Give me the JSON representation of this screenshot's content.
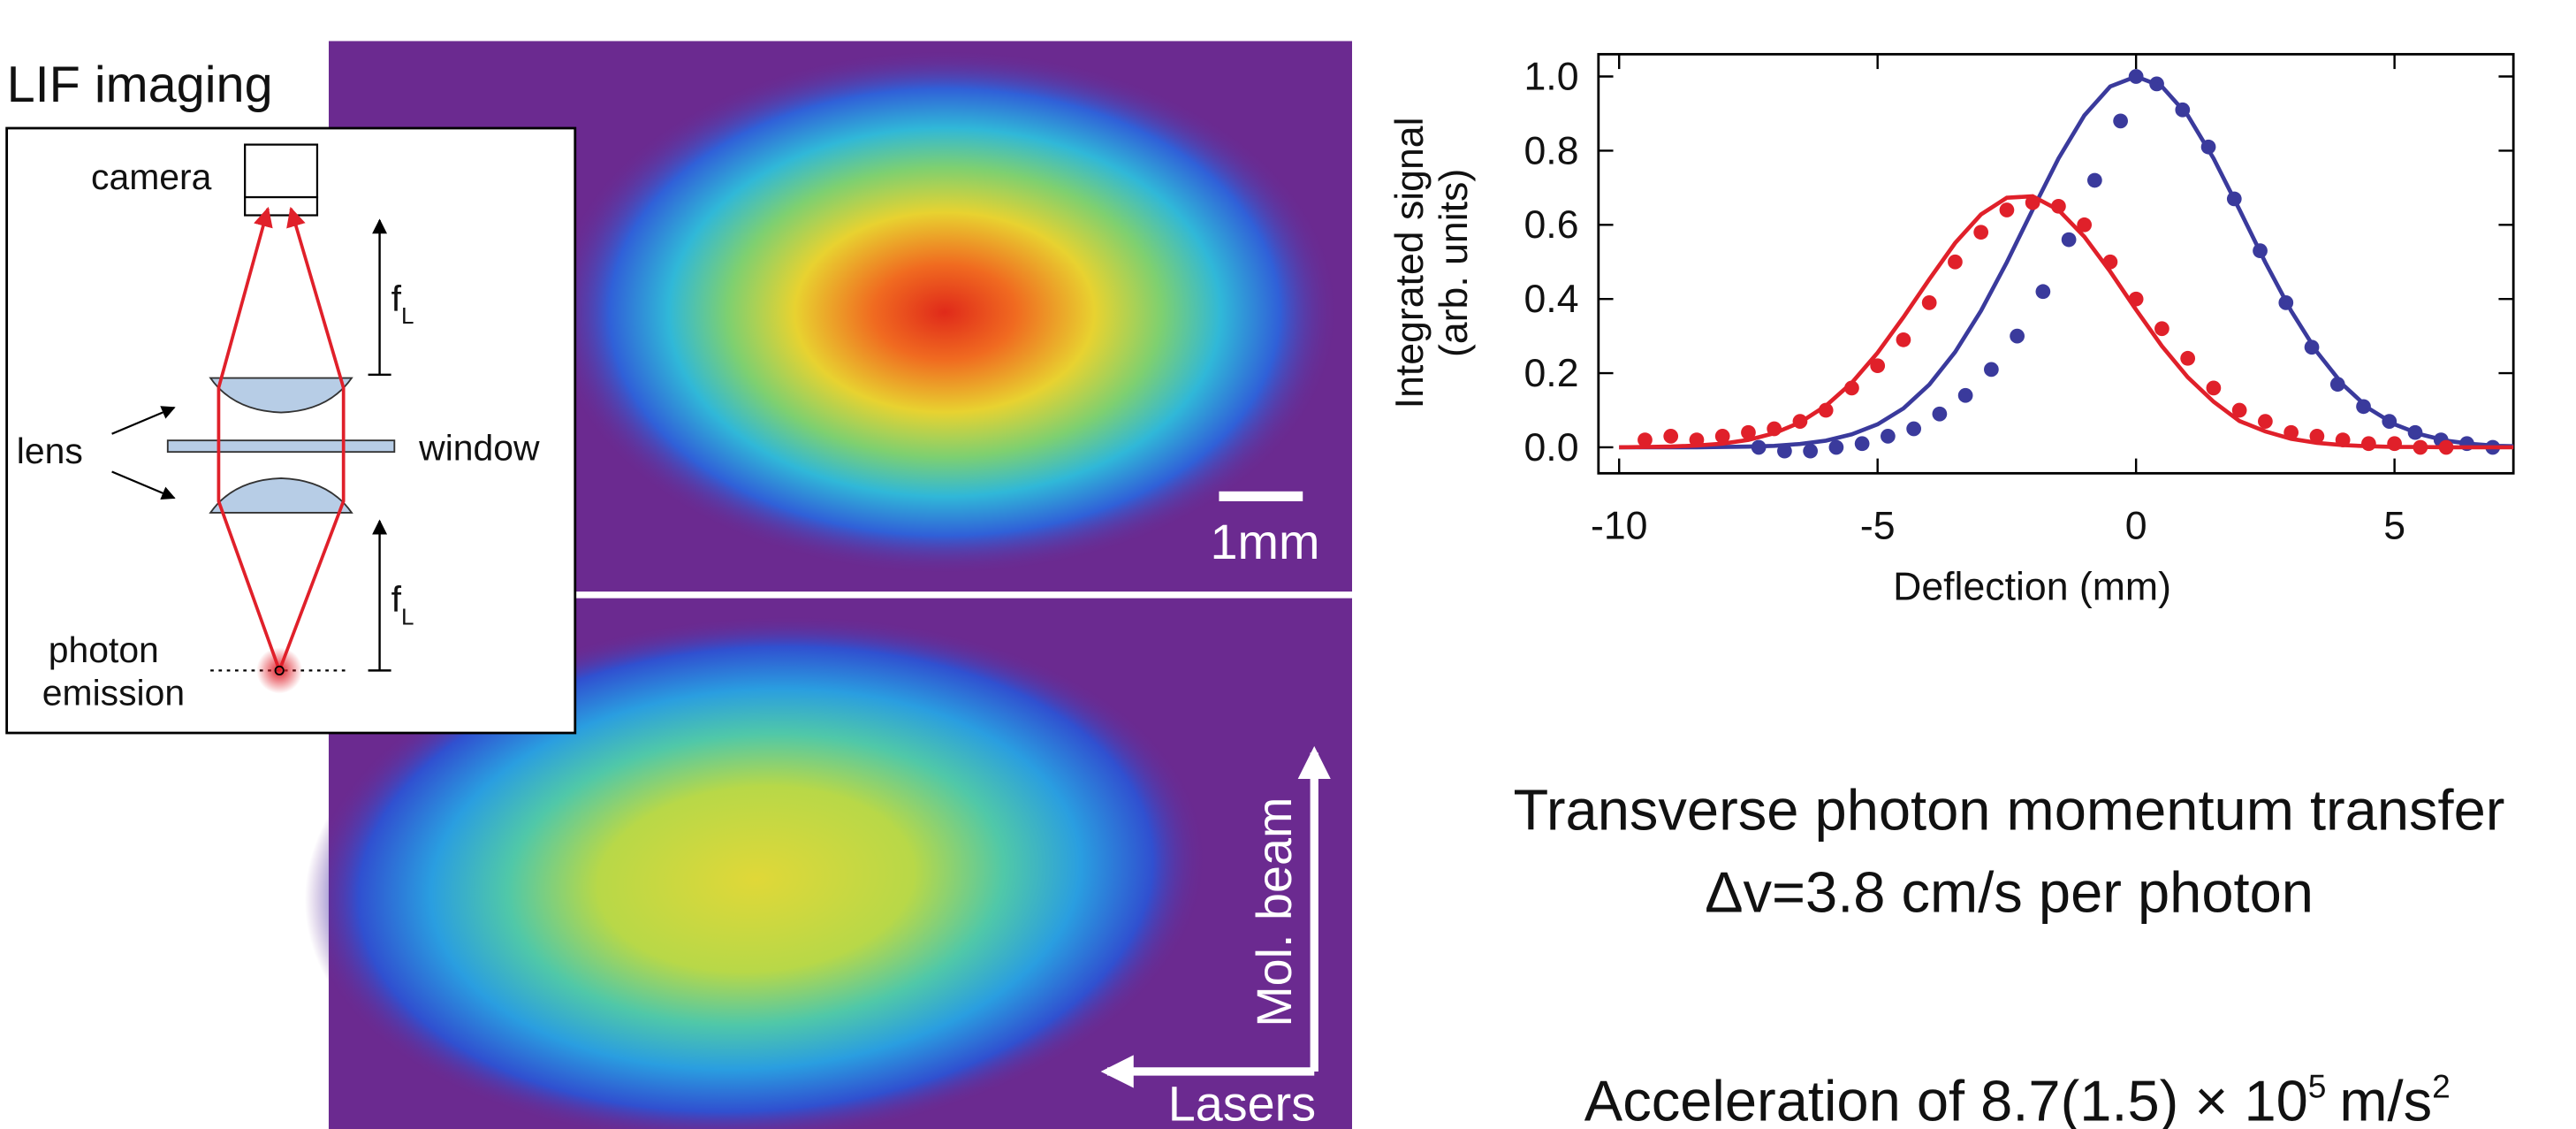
{
  "panel_labels": {
    "title": "LIF imaging",
    "camera": "camera",
    "focal_top": [
      "f",
      "L"
    ],
    "focal_bottom": [
      "f",
      "L"
    ],
    "lens": "lens",
    "window": "window",
    "emission": [
      "photon",
      "emission"
    ],
    "scale_bar": "1mm",
    "beam_arrow": "Mol. beam",
    "laser_arrow": "Lasers"
  },
  "chart_data": {
    "type": "scatter",
    "xlabel": "Deflection (mm)",
    "ylabel": [
      "Integrated signal",
      "(arb. units)"
    ],
    "xlim": [
      -10.4,
      7.3
    ],
    "ylim": [
      -0.07,
      1.06
    ],
    "xticks": [
      -10,
      -5,
      0,
      5
    ],
    "yticks": [
      {
        "value": 0,
        "label": "0.0"
      },
      0.2,
      0.4,
      0.6,
      0.8,
      {
        "value": 1,
        "label": "1.0"
      }
    ],
    "series": [
      {
        "mode": "markers",
        "color": "#3a3a9c",
        "x": [
          -7.3,
          -6.8,
          -6.3,
          -5.8,
          -5.3,
          -4.8,
          -4.3,
          -3.8,
          -3.3,
          -2.8,
          -2.3,
          -1.8,
          -1.3,
          -0.8,
          -0.3,
          0,
          0.4,
          0.9,
          1.4,
          1.9,
          2.4,
          2.9,
          3.4,
          3.9,
          4.4,
          4.9,
          5.4,
          5.9,
          6.4,
          6.9
        ],
        "values": [
          0,
          -0.01,
          -0.01,
          0,
          0.01,
          0.03,
          0.05,
          0.09,
          0.14,
          0.21,
          0.3,
          0.42,
          0.56,
          0.72,
          0.88,
          1.0,
          0.98,
          0.91,
          0.81,
          0.67,
          0.53,
          0.39,
          0.27,
          0.17,
          0.11,
          0.07,
          0.04,
          0.02,
          0.01,
          0.0
        ]
      },
      {
        "mode": "line",
        "color": "#3a3a9c",
        "x": [
          -10,
          -9.5,
          -9,
          -8.5,
          -8,
          -7.5,
          -7,
          -6.5,
          -6,
          -5.5,
          -5,
          -4.5,
          -4,
          -3.5,
          -3,
          -2.5,
          -2,
          -1.5,
          -1,
          -0.5,
          0,
          0.5,
          1,
          1.5,
          2,
          2.5,
          3,
          3.5,
          4,
          4.5,
          5,
          5.5,
          6,
          6.5,
          7,
          7.3
        ],
        "values": [
          0,
          0,
          0,
          0,
          0.001,
          0.002,
          0.004,
          0.009,
          0.018,
          0.035,
          0.062,
          0.105,
          0.169,
          0.257,
          0.368,
          0.499,
          0.641,
          0.779,
          0.895,
          0.973,
          1.0,
          0.973,
          0.895,
          0.779,
          0.641,
          0.499,
          0.368,
          0.257,
          0.169,
          0.105,
          0.062,
          0.035,
          0.018,
          0.009,
          0.004,
          0.003
        ]
      },
      {
        "mode": "markers",
        "color": "#e0202a",
        "x": [
          -9.5,
          -9,
          -8.5,
          -8,
          -7.5,
          -7,
          -6.5,
          -6,
          -5.5,
          -5,
          -4.5,
          -4,
          -3.5,
          -3,
          -2.5,
          -2,
          -1.5,
          -1,
          -0.5,
          0,
          0.5,
          1,
          1.5,
          2,
          2.5,
          3,
          3.5,
          4,
          4.5,
          5,
          5.5,
          6
        ],
        "values": [
          0.02,
          0.03,
          0.02,
          0.03,
          0.04,
          0.05,
          0.07,
          0.1,
          0.16,
          0.22,
          0.29,
          0.39,
          0.5,
          0.58,
          0.64,
          0.66,
          0.65,
          0.6,
          0.5,
          0.4,
          0.32,
          0.24,
          0.16,
          0.1,
          0.07,
          0.04,
          0.03,
          0.02,
          0.01,
          0.01,
          0.0,
          0.0
        ]
      },
      {
        "mode": "line",
        "color": "#e0202a",
        "x": [
          -10,
          -9.5,
          -9,
          -8.5,
          -8,
          -7.5,
          -7,
          -6.5,
          -6,
          -5.5,
          -5,
          -4.5,
          -4,
          -3.5,
          -3,
          -2.5,
          -2,
          -1.5,
          -1,
          -0.5,
          0,
          0.5,
          1,
          1.5,
          2,
          2.5,
          3,
          3.5,
          4,
          4.5,
          5,
          5.5,
          6,
          6.5,
          7,
          7.3
        ],
        "values": [
          0,
          0.001,
          0.002,
          0.005,
          0.01,
          0.02,
          0.038,
          0.067,
          0.112,
          0.174,
          0.255,
          0.351,
          0.453,
          0.551,
          0.628,
          0.673,
          0.677,
          0.64,
          0.568,
          0.474,
          0.371,
          0.273,
          0.189,
          0.123,
          0.071,
          0.043,
          0.023,
          0.012,
          0.006,
          0.003,
          0.001,
          0.001,
          0,
          0,
          0,
          0
        ]
      }
    ]
  },
  "text": {
    "line1": "Transverse photon momentum transfer",
    "line2": "Δv=3.8 cm/s per photon",
    "acceleration": [
      "Acceleration of 8.7(1.5) × 10",
      "5",
      "m/s",
      "2"
    ]
  }
}
